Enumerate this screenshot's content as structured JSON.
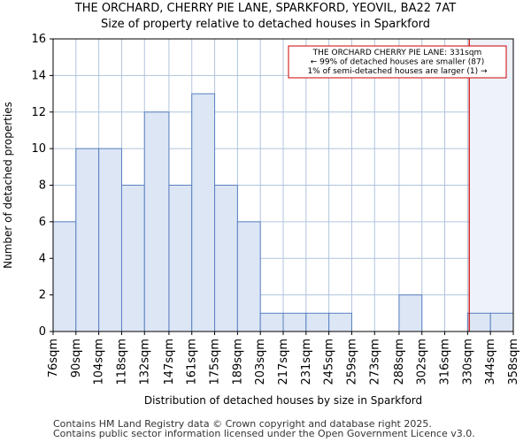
{
  "chart_data": {
    "type": "bar",
    "title": "THE ORCHARD, CHERRY PIE LANE, SPARKFORD, YEOVIL, BA22 7AT",
    "subtitle": "Size of property relative to detached houses in Sparkford",
    "xlabel": "Distribution of detached houses by size in Sparkford",
    "ylabel": "Number of detached properties",
    "bin_edges": [
      76,
      90,
      104,
      118,
      132,
      147,
      161,
      175,
      189,
      203,
      217,
      231,
      245,
      259,
      273,
      288,
      302,
      316,
      330,
      344,
      358
    ],
    "tick_labels": [
      "76sqm",
      "90sqm",
      "104sqm",
      "118sqm",
      "132sqm",
      "147sqm",
      "161sqm",
      "175sqm",
      "189sqm",
      "203sqm",
      "217sqm",
      "231sqm",
      "245sqm",
      "259sqm",
      "273sqm",
      "288sqm",
      "302sqm",
      "316sqm",
      "330sqm",
      "344sqm",
      "358sqm"
    ],
    "values": [
      6,
      10,
      10,
      8,
      12,
      8,
      13,
      8,
      6,
      1,
      1,
      1,
      1,
      0,
      0,
      2,
      0,
      0,
      1,
      1
    ],
    "ylim": [
      0,
      16
    ],
    "yticks": [
      0,
      2,
      4,
      6,
      8,
      10,
      12,
      14,
      16
    ],
    "grid": true,
    "marker": {
      "value": 331,
      "label_lines": [
        "THE ORCHARD CHERRY PIE LANE: 331sqm",
        "← 99% of detached houses are smaller (87)",
        "1% of semi-detached houses are larger (1) →"
      ]
    },
    "colors": {
      "bar_fill": "#dce6f5",
      "bar_stroke": "#5a80c0",
      "marker_line": "#cc0000",
      "highlight_fill": "#eef2fb",
      "grid": "#b0c4de"
    }
  },
  "footer": {
    "line1": "Contains HM Land Registry data © Crown copyright and database right 2025.",
    "line2": "Contains public sector information licensed under the Open Government Licence v3.0."
  }
}
